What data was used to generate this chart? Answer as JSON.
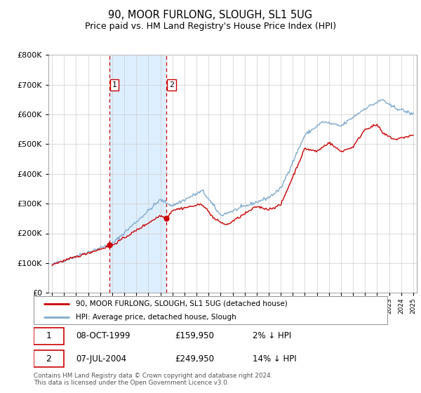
{
  "title": "90, MOOR FURLONG, SLOUGH, SL1 5UG",
  "subtitle": "Price paid vs. HM Land Registry's House Price Index (HPI)",
  "legend_line1": "90, MOOR FURLONG, SLOUGH, SL1 5UG (detached house)",
  "legend_line2": "HPI: Average price, detached house, Slough",
  "footer": "Contains HM Land Registry data © Crown copyright and database right 2024.\nThis data is licensed under the Open Government Licence v3.0.",
  "sale1_label": "1",
  "sale1_date": "08-OCT-1999",
  "sale1_price": "£159,950",
  "sale1_hpi": "2% ↓ HPI",
  "sale1_year": 1999.78,
  "sale1_value": 159950,
  "sale2_label": "2",
  "sale2_date": "07-JUL-2004",
  "sale2_price": "£249,950",
  "sale2_hpi": "14% ↓ HPI",
  "sale2_year": 2004.52,
  "sale2_value": 249950,
  "line_color_red": "#cc0000",
  "line_color_blue": "#80aacc",
  "shade_color": "#ddeeff",
  "background_color": "#ffffff",
  "grid_color": "#cccccc",
  "ylim": [
    0,
    800000
  ],
  "xlim_start": 1994.7,
  "xlim_end": 2025.3
}
